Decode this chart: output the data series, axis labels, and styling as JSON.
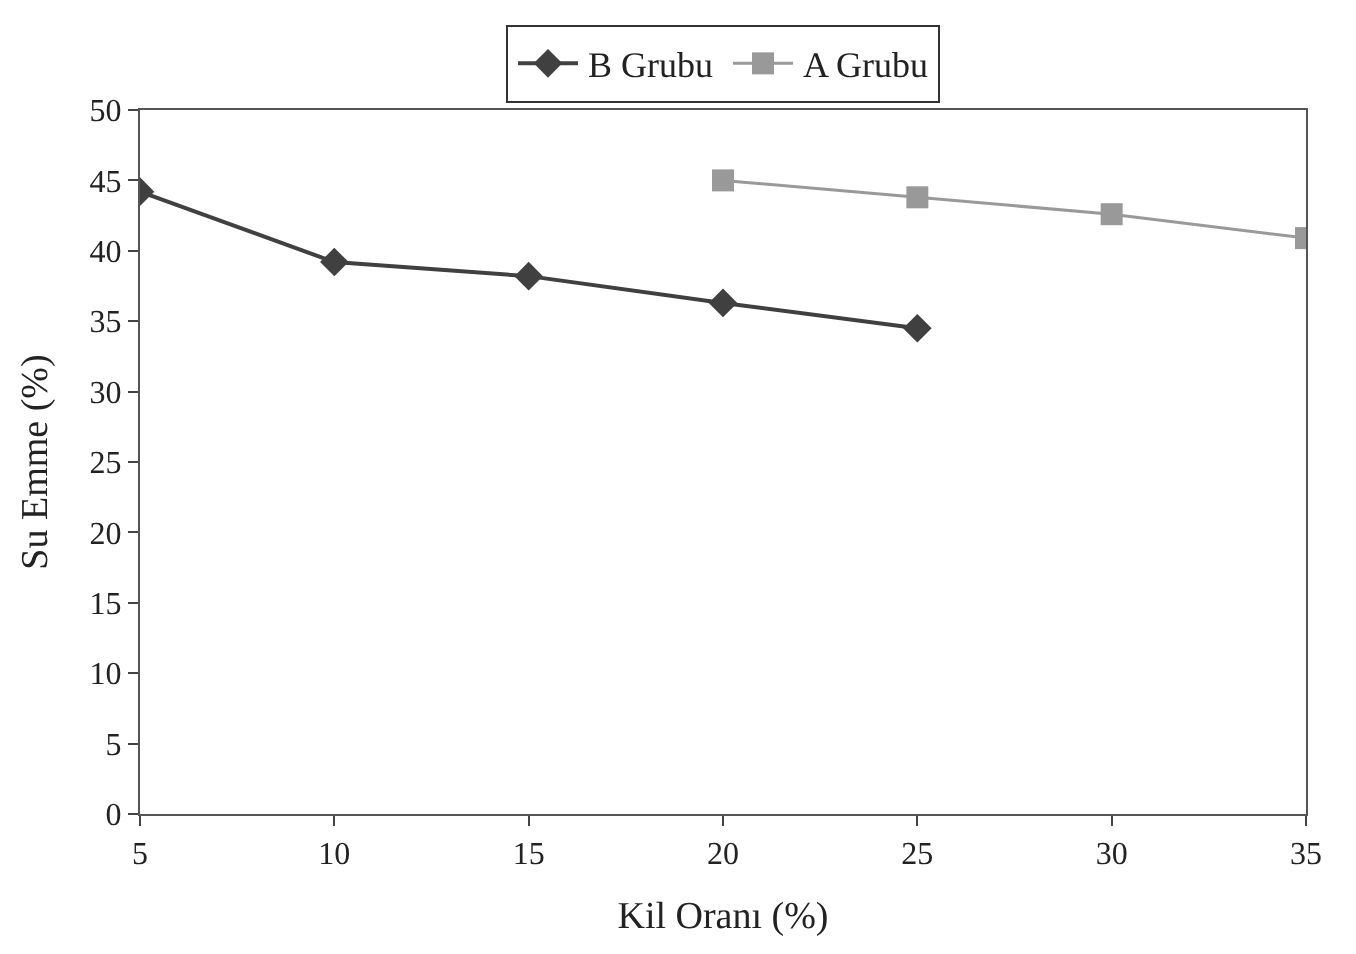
{
  "chart_data": {
    "type": "line",
    "xlabel": "Kil Oranı (%)",
    "ylabel": "Su Emme (%)",
    "xlim": [
      5,
      35
    ],
    "xticks": [
      5,
      10,
      15,
      20,
      25,
      30,
      35
    ],
    "ylim": [
      0,
      50
    ],
    "yticks": [
      0,
      5,
      10,
      15,
      20,
      25,
      30,
      35,
      40,
      45,
      50
    ],
    "legend": "top",
    "series": [
      {
        "name": "B Grubu",
        "color": "#404040",
        "marker": "diamond",
        "x": [
          5,
          10,
          15,
          20,
          25
        ],
        "values": [
          44.2,
          39.2,
          38.2,
          36.3,
          34.5
        ]
      },
      {
        "name": "A Grubu",
        "color": "#999999",
        "marker": "square",
        "x": [
          20,
          25,
          30,
          35
        ],
        "values": [
          45.0,
          43.8,
          42.6,
          40.9
        ]
      }
    ]
  }
}
